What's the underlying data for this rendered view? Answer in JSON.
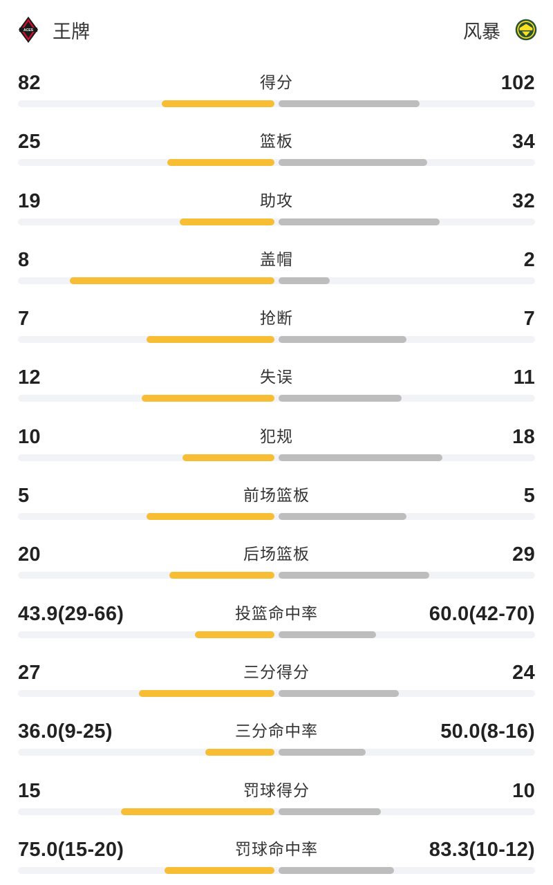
{
  "header": {
    "home_name": "王牌",
    "away_name": "风暴",
    "home_logo_text": "ACES",
    "home_logo_icon": "aces-diamond-logo",
    "away_logo_icon": "storm-shield-logo"
  },
  "colors": {
    "home_bar": "#f7bd34",
    "away_bar": "#bdbdbd",
    "track": "#f1f3f6"
  },
  "stats": [
    {
      "label": "得分",
      "home": "82",
      "away": "102",
      "home_fill": 0.44,
      "away_fill": 0.55
    },
    {
      "label": "篮板",
      "home": "25",
      "away": "34",
      "home_fill": 0.42,
      "away_fill": 0.58
    },
    {
      "label": "助攻",
      "home": "19",
      "away": "32",
      "home_fill": 0.37,
      "away_fill": 0.63
    },
    {
      "label": "盖帽",
      "home": "8",
      "away": "2",
      "home_fill": 0.8,
      "away_fill": 0.2
    },
    {
      "label": "抢断",
      "home": "7",
      "away": "7",
      "home_fill": 0.5,
      "away_fill": 0.5
    },
    {
      "label": "失误",
      "home": "12",
      "away": "11",
      "home_fill": 0.52,
      "away_fill": 0.48
    },
    {
      "label": "犯规",
      "home": "10",
      "away": "18",
      "home_fill": 0.36,
      "away_fill": 0.64
    },
    {
      "label": "前场篮板",
      "home": "5",
      "away": "5",
      "home_fill": 0.5,
      "away_fill": 0.5
    },
    {
      "label": "后场篮板",
      "home": "20",
      "away": "29",
      "home_fill": 0.41,
      "away_fill": 0.59
    },
    {
      "label": "投篮命中率",
      "home": "43.9(29-66)",
      "away": "60.0(42-70)",
      "home_fill": 0.31,
      "away_fill": 0.38
    },
    {
      "label": "三分得分",
      "home": "27",
      "away": "24",
      "home_fill": 0.53,
      "away_fill": 0.47
    },
    {
      "label": "三分命中率",
      "home": "36.0(9-25)",
      "away": "50.0(8-16)",
      "home_fill": 0.27,
      "away_fill": 0.34
    },
    {
      "label": "罚球得分",
      "home": "15",
      "away": "10",
      "home_fill": 0.6,
      "away_fill": 0.4
    },
    {
      "label": "罚球命中率",
      "home": "75.0(15-20)",
      "away": "83.3(10-12)",
      "home_fill": 0.43,
      "away_fill": 0.45
    }
  ]
}
